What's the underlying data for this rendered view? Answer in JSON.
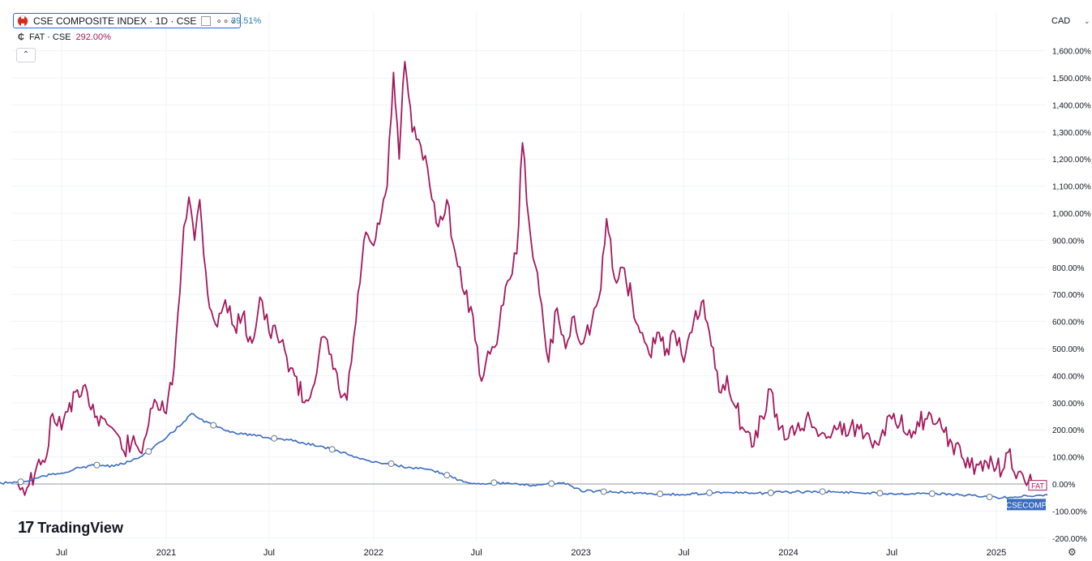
{
  "legend": {
    "comp_title": "CSE COMPOSITE INDEX · 1D · CSE",
    "comp_change": "39.51%",
    "fat_title": "FAT · CSE",
    "fat_change": "292.00%",
    "collapse_icon": "chevron-up-icon"
  },
  "currency": "CAD",
  "brand": "TradingView",
  "colors": {
    "fat": "#a3185c",
    "comp": "#3a6bbf",
    "grid": "#f0f3fa"
  },
  "chart_data": {
    "type": "line",
    "y_tick_labels": [
      "1,600.00%",
      "1,500.00%",
      "1,400.00%",
      "1,300.00%",
      "1,200.00%",
      "1,100.00%",
      "1,000.00%",
      "900.00%",
      "800.00%",
      "700.00%",
      "600.00%",
      "500.00%",
      "400.00%",
      "300.00%",
      "200.00%",
      "100.00%",
      "0.00%",
      "-100.00%",
      "-200.00%"
    ],
    "ylim": [
      -200,
      1650
    ],
    "x_tick_labels": [
      {
        "label": "Jul",
        "date": "2020-07"
      },
      {
        "label": "2021",
        "date": "2021-01"
      },
      {
        "label": "Jul",
        "date": "2021-07"
      },
      {
        "label": "2022",
        "date": "2022-01"
      },
      {
        "label": "Jul",
        "date": "2022-07"
      },
      {
        "label": "2023",
        "date": "2023-01"
      },
      {
        "label": "Jul",
        "date": "2023-07"
      },
      {
        "label": "2024",
        "date": "2024-01"
      },
      {
        "label": "Jul",
        "date": "2024-07"
      },
      {
        "label": "2025",
        "date": "2025-01"
      }
    ],
    "x_range": [
      "2020-03",
      "2025-05"
    ],
    "series": [
      {
        "name": "FAT",
        "color": "#a3185c",
        "points": [
          [
            "2020-04-15",
            0
          ],
          [
            "2020-05-01",
            -15
          ],
          [
            "2020-05-15",
            40
          ],
          [
            "2020-06-01",
            80
          ],
          [
            "2020-06-15",
            260
          ],
          [
            "2020-07-01",
            200
          ],
          [
            "2020-07-15",
            300
          ],
          [
            "2020-08-01",
            320
          ],
          [
            "2020-08-15",
            340
          ],
          [
            "2020-09-01",
            250
          ],
          [
            "2020-09-15",
            240
          ],
          [
            "2020-10-01",
            200
          ],
          [
            "2020-10-15",
            130
          ],
          [
            "2020-11-01",
            150
          ],
          [
            "2020-11-15",
            120
          ],
          [
            "2020-12-01",
            220
          ],
          [
            "2020-12-15",
            300
          ],
          [
            "2021-01-01",
            260
          ],
          [
            "2021-01-15",
            430
          ],
          [
            "2021-02-01",
            950
          ],
          [
            "2021-02-10",
            1060
          ],
          [
            "2021-02-20",
            900
          ],
          [
            "2021-03-01",
            1050
          ],
          [
            "2021-03-15",
            700
          ],
          [
            "2021-04-01",
            580
          ],
          [
            "2021-04-15",
            680
          ],
          [
            "2021-05-01",
            580
          ],
          [
            "2021-05-15",
            620
          ],
          [
            "2021-06-01",
            520
          ],
          [
            "2021-06-15",
            690
          ],
          [
            "2021-07-01",
            560
          ],
          [
            "2021-07-15",
            550
          ],
          [
            "2021-08-01",
            470
          ],
          [
            "2021-08-15",
            400
          ],
          [
            "2021-09-01",
            300
          ],
          [
            "2021-09-15",
            350
          ],
          [
            "2021-10-01",
            540
          ],
          [
            "2021-10-15",
            480
          ],
          [
            "2021-11-01",
            350
          ],
          [
            "2021-11-15",
            310
          ],
          [
            "2021-12-01",
            600
          ],
          [
            "2021-12-15",
            900
          ],
          [
            "2022-01-01",
            880
          ],
          [
            "2022-01-15",
            1000
          ],
          [
            "2022-01-25",
            1100
          ],
          [
            "2022-02-05",
            1520
          ],
          [
            "2022-02-15",
            1200
          ],
          [
            "2022-02-25",
            1560
          ],
          [
            "2022-03-10",
            1300
          ],
          [
            "2022-03-25",
            1250
          ],
          [
            "2022-04-10",
            1100
          ],
          [
            "2022-04-25",
            950
          ],
          [
            "2022-05-10",
            1050
          ],
          [
            "2022-05-25",
            850
          ],
          [
            "2022-06-10",
            700
          ],
          [
            "2022-06-25",
            620
          ],
          [
            "2022-07-10",
            380
          ],
          [
            "2022-07-25",
            480
          ],
          [
            "2022-08-10",
            580
          ],
          [
            "2022-08-25",
            750
          ],
          [
            "2022-09-10",
            850
          ],
          [
            "2022-09-20",
            1260
          ],
          [
            "2022-10-05",
            900
          ],
          [
            "2022-10-20",
            700
          ],
          [
            "2022-11-05",
            450
          ],
          [
            "2022-11-20",
            650
          ],
          [
            "2022-12-05",
            500
          ],
          [
            "2022-12-20",
            620
          ],
          [
            "2023-01-05",
            520
          ],
          [
            "2023-01-20",
            600
          ],
          [
            "2023-02-05",
            720
          ],
          [
            "2023-02-15",
            980
          ],
          [
            "2023-03-01",
            760
          ],
          [
            "2023-03-15",
            800
          ],
          [
            "2023-04-01",
            680
          ],
          [
            "2023-04-15",
            560
          ],
          [
            "2023-05-01",
            480
          ],
          [
            "2023-05-15",
            560
          ],
          [
            "2023-06-01",
            500
          ],
          [
            "2023-06-15",
            560
          ],
          [
            "2023-07-01",
            450
          ],
          [
            "2023-07-15",
            560
          ],
          [
            "2023-08-01",
            670
          ],
          [
            "2023-08-15",
            560
          ],
          [
            "2023-09-01",
            340
          ],
          [
            "2023-09-15",
            400
          ],
          [
            "2023-10-01",
            280
          ],
          [
            "2023-10-15",
            200
          ],
          [
            "2023-11-01",
            140
          ],
          [
            "2023-11-15",
            250
          ],
          [
            "2023-12-01",
            350
          ],
          [
            "2023-12-15",
            200
          ],
          [
            "2024-01-01",
            170
          ],
          [
            "2024-01-15",
            200
          ],
          [
            "2024-02-01",
            240
          ],
          [
            "2024-02-15",
            210
          ],
          [
            "2024-03-01",
            190
          ],
          [
            "2024-03-15",
            170
          ],
          [
            "2024-04-01",
            230
          ],
          [
            "2024-04-15",
            180
          ],
          [
            "2024-05-01",
            220
          ],
          [
            "2024-05-15",
            180
          ],
          [
            "2024-06-01",
            160
          ],
          [
            "2024-06-15",
            200
          ],
          [
            "2024-07-01",
            240
          ],
          [
            "2024-07-15",
            220
          ],
          [
            "2024-08-01",
            200
          ],
          [
            "2024-08-15",
            230
          ],
          [
            "2024-09-01",
            240
          ],
          [
            "2024-09-15",
            220
          ],
          [
            "2024-10-01",
            190
          ],
          [
            "2024-10-15",
            150
          ],
          [
            "2024-11-01",
            100
          ],
          [
            "2024-11-15",
            60
          ],
          [
            "2024-12-01",
            70
          ],
          [
            "2024-12-15",
            80
          ],
          [
            "2025-01-01",
            60
          ],
          [
            "2025-01-15",
            60
          ],
          [
            "2025-01-25",
            130
          ],
          [
            "2025-02-05",
            20
          ],
          [
            "2025-02-20",
            10
          ],
          [
            "2025-03-05",
            0
          ],
          [
            "2025-03-20",
            -5
          ]
        ]
      },
      {
        "name": "CSECOMP",
        "color": "#3a6bbf",
        "points": [
          [
            "2020-03-01",
            0
          ],
          [
            "2020-04-01",
            5
          ],
          [
            "2020-05-01",
            10
          ],
          [
            "2020-06-01",
            30
          ],
          [
            "2020-07-01",
            40
          ],
          [
            "2020-08-01",
            60
          ],
          [
            "2020-09-01",
            70
          ],
          [
            "2020-10-01",
            65
          ],
          [
            "2020-11-01",
            85
          ],
          [
            "2020-12-01",
            120
          ],
          [
            "2021-01-01",
            170
          ],
          [
            "2021-02-01",
            230
          ],
          [
            "2021-02-15",
            260
          ],
          [
            "2021-03-01",
            240
          ],
          [
            "2021-04-01",
            210
          ],
          [
            "2021-05-01",
            190
          ],
          [
            "2021-06-01",
            180
          ],
          [
            "2021-07-01",
            170
          ],
          [
            "2021-08-01",
            165
          ],
          [
            "2021-09-01",
            150
          ],
          [
            "2021-10-01",
            140
          ],
          [
            "2021-11-01",
            120
          ],
          [
            "2021-12-01",
            100
          ],
          [
            "2022-01-01",
            80
          ],
          [
            "2022-02-01",
            75
          ],
          [
            "2022-03-01",
            60
          ],
          [
            "2022-04-01",
            55
          ],
          [
            "2022-05-01",
            40
          ],
          [
            "2022-06-01",
            15
          ],
          [
            "2022-07-01",
            0
          ],
          [
            "2022-08-01",
            5
          ],
          [
            "2022-09-01",
            0
          ],
          [
            "2022-10-01",
            -5
          ],
          [
            "2022-11-01",
            0
          ],
          [
            "2022-12-01",
            5
          ],
          [
            "2023-01-01",
            -25
          ],
          [
            "2023-03-01",
            -30
          ],
          [
            "2023-05-01",
            -35
          ],
          [
            "2023-07-01",
            -40
          ],
          [
            "2023-09-01",
            -30
          ],
          [
            "2023-11-01",
            -35
          ],
          [
            "2024-01-01",
            -30
          ],
          [
            "2024-03-01",
            -28
          ],
          [
            "2024-05-01",
            -32
          ],
          [
            "2024-07-01",
            -35
          ],
          [
            "2024-09-01",
            -35
          ],
          [
            "2024-11-01",
            -40
          ],
          [
            "2025-01-01",
            -50
          ],
          [
            "2025-03-01",
            -45
          ],
          [
            "2025-04-01",
            -40
          ]
        ]
      }
    ],
    "end_labels": [
      "FAT",
      "CSECOMP"
    ],
    "grid": true
  }
}
